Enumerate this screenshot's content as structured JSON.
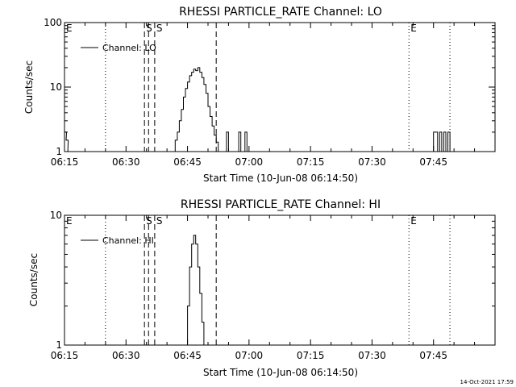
{
  "chart_data": [
    {
      "type": "line",
      "title": "RHESSI PARTICLE_RATE Channel: LO",
      "xlabel": "Start Time (10-Jun-08 06:14:50)",
      "ylabel": "Counts/sec",
      "yscale": "log",
      "ylim": [
        1,
        100
      ],
      "xlim_minutes": [
        0,
        105
      ],
      "x_tick_minutes": [
        0,
        15,
        30,
        45,
        60,
        75,
        90
      ],
      "x_tick_labels": [
        "06:15",
        "06:30",
        "06:45",
        "07:00",
        "07:15",
        "07:30",
        "07:45"
      ],
      "y_tick_values": [
        1,
        10,
        100
      ],
      "y_tick_labels": [
        "1",
        "10",
        "100"
      ],
      "legend": {
        "label": "Channel: LO",
        "placement": "top-left"
      },
      "markers": [
        {
          "label": "E",
          "minute": 0,
          "style": "dotted"
        },
        {
          "label": "",
          "minute": 10,
          "style": "dotted"
        },
        {
          "label": "S",
          "minute": 19.5,
          "style": "dashed"
        },
        {
          "label": "",
          "minute": 20.5,
          "style": "dashed"
        },
        {
          "label": "S",
          "minute": 22,
          "style": "dashed"
        },
        {
          "label": "",
          "minute": 37,
          "style": "dashed"
        },
        {
          "label": "E",
          "minute": 84,
          "style": "dotted"
        },
        {
          "label": "",
          "minute": 94,
          "style": "dotted"
        }
      ],
      "series": [
        {
          "name": "Channel: LO",
          "x": [
            0.0,
            0.4,
            0.8,
            1.2,
            26.5,
            27.0,
            27.5,
            28.0,
            28.5,
            29.0,
            29.5,
            30.0,
            30.5,
            31.0,
            31.5,
            32.0,
            32.5,
            33.0,
            33.5,
            34.0,
            34.5,
            35.0,
            35.5,
            36.0,
            36.5,
            37.0,
            37.5,
            38.0,
            38.5,
            39.0,
            39.5,
            40.0,
            40.5,
            41.0,
            41.5,
            42.0,
            42.5,
            43.0,
            43.5,
            44.0,
            44.5,
            45.0,
            45.5,
            46.0,
            46.5,
            47.0,
            47.5,
            48.0,
            48.5,
            49.0,
            49.5,
            50.0,
            50.5,
            51.0,
            51.5,
            52.0,
            52.5,
            53.0,
            89.0,
            89.5,
            90.0,
            90.5,
            91.0,
            91.5,
            92.0,
            92.5,
            93.0,
            93.5,
            94.0,
            94.5
          ],
          "y": [
            2,
            1.5,
            1,
            1,
            1,
            1.5,
            2,
            3,
            4.5,
            7,
            9.5,
            12,
            15,
            17,
            19,
            18,
            20,
            17,
            14,
            11,
            8,
            5,
            3.5,
            2.5,
            1.8,
            1.4,
            1,
            1,
            1,
            1,
            2,
            1,
            1,
            1,
            1,
            1,
            2,
            1,
            1,
            2,
            1,
            1,
            1,
            1,
            1,
            1,
            1,
            1,
            1,
            1,
            1,
            1,
            1,
            1,
            1,
            1,
            1,
            1,
            1,
            1,
            2,
            2,
            1,
            2,
            1,
            2,
            1,
            2,
            1,
            1
          ],
          "display_y": [
            2,
            1.5,
            1,
            1,
            1,
            1.5,
            2,
            3,
            4.5,
            7,
            9.5,
            12,
            15,
            17,
            19,
            18,
            20,
            17,
            14,
            11,
            8,
            5,
            3.5,
            2.5,
            1.8,
            1.4,
            1,
            1,
            1,
            1,
            2,
            1,
            1,
            1,
            1,
            1,
            2,
            1,
            1,
            2,
            1,
            1,
            1,
            1,
            1,
            1,
            1,
            1,
            1,
            1,
            1,
            1,
            1,
            1,
            1,
            1,
            1,
            1,
            1,
            1,
            2,
            2,
            1,
            2,
            1,
            2,
            1,
            2,
            1,
            1
          ]
        }
      ]
    },
    {
      "type": "line",
      "title": "RHESSI PARTICLE_RATE Channel: HI",
      "xlabel": "Start Time (10-Jun-08 06:14:50)",
      "ylabel": "Counts/sec",
      "yscale": "log",
      "ylim": [
        1,
        10
      ],
      "xlim_minutes": [
        0,
        105
      ],
      "x_tick_minutes": [
        0,
        15,
        30,
        45,
        60,
        75,
        90
      ],
      "x_tick_labels": [
        "06:15",
        "06:30",
        "06:45",
        "07:00",
        "07:15",
        "07:30",
        "07:45"
      ],
      "y_tick_values": [
        1,
        10
      ],
      "y_tick_labels": [
        "1",
        "10"
      ],
      "legend": {
        "label": "Channel: HI",
        "placement": "top-left"
      },
      "markers": [
        {
          "label": "E",
          "minute": 0,
          "style": "dotted"
        },
        {
          "label": "",
          "minute": 10,
          "style": "dotted"
        },
        {
          "label": "S",
          "minute": 19.5,
          "style": "dashed"
        },
        {
          "label": "",
          "minute": 20.5,
          "style": "dashed"
        },
        {
          "label": "S",
          "minute": 22,
          "style": "dashed"
        },
        {
          "label": "",
          "minute": 37,
          "style": "dashed"
        },
        {
          "label": "E",
          "minute": 84,
          "style": "dotted"
        },
        {
          "label": "",
          "minute": 94,
          "style": "dotted"
        }
      ],
      "series": [
        {
          "name": "Channel: HI",
          "x": [
            29.5,
            30.0,
            30.5,
            31.0,
            31.5,
            32.0,
            32.5,
            33.0,
            33.5,
            34.0
          ],
          "y": [
            1,
            2,
            4,
            6,
            7,
            6,
            4,
            2.5,
            1.5,
            1
          ]
        }
      ]
    }
  ],
  "timestamp": "14-Oct-2021 17:59"
}
